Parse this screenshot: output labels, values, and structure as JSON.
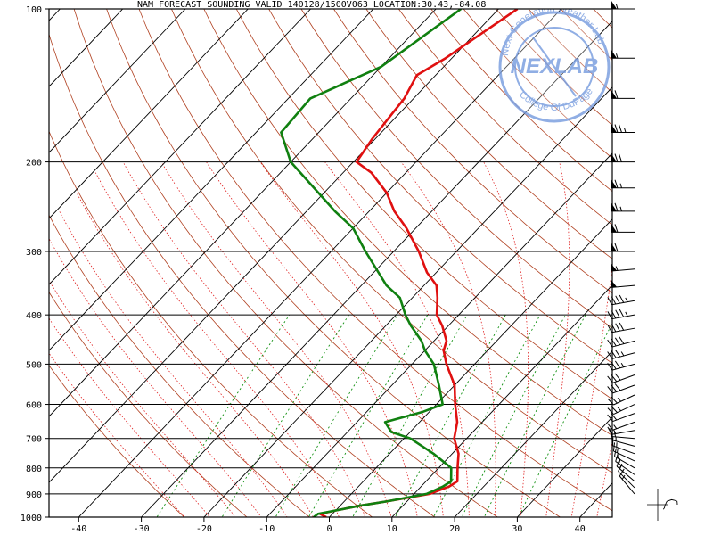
{
  "title": "NAM FORECAST SOUNDING VALID 140128/1500V063   LOCATION:30.43,-84.08",
  "chart_data": {
    "type": "line",
    "subtype": "skew-T log-P sounding",
    "xlim": [
      -45,
      45
    ],
    "ylim_hPa": [
      1000,
      100
    ],
    "x_ticks": [
      -40,
      -30,
      -20,
      -10,
      0,
      10,
      20,
      30,
      40
    ],
    "pressure_ticks": [
      100,
      200,
      300,
      400,
      500,
      600,
      700,
      800,
      900,
      1000
    ],
    "isotherm_interval": 10,
    "series": [
      {
        "kind": "temperature",
        "color": "#e01010",
        "points": [
          [
            1000,
            -0.5
          ],
          [
            985,
            -2.0
          ],
          [
            970,
            0.0
          ],
          [
            950,
            3.0
          ],
          [
            930,
            7.0
          ],
          [
            900,
            12.5
          ],
          [
            870,
            14.5
          ],
          [
            850,
            15.0
          ],
          [
            800,
            13.0
          ],
          [
            750,
            11.0
          ],
          [
            700,
            8.0
          ],
          [
            650,
            6.0
          ],
          [
            600,
            3.0
          ],
          [
            550,
            0.0
          ],
          [
            500,
            -4.5
          ],
          [
            470,
            -7.0
          ],
          [
            450,
            -8.0
          ],
          [
            420,
            -11.0
          ],
          [
            400,
            -13.5
          ],
          [
            370,
            -16.0
          ],
          [
            350,
            -18.0
          ],
          [
            330,
            -21.5
          ],
          [
            300,
            -26.0
          ],
          [
            270,
            -31.5
          ],
          [
            250,
            -36.0
          ],
          [
            230,
            -40.0
          ],
          [
            210,
            -45.5
          ],
          [
            200,
            -49.5
          ],
          [
            180,
            -50.5
          ],
          [
            150,
            -51.5
          ],
          [
            135,
            -53.0
          ],
          [
            125,
            -51.0
          ],
          [
            100,
            -47.0
          ]
        ]
      },
      {
        "kind": "dewpoint",
        "color": "#108010",
        "points": [
          [
            1000,
            -2.5
          ],
          [
            985,
            -2.3
          ],
          [
            970,
            0.0
          ],
          [
            950,
            3.0
          ],
          [
            930,
            7.0
          ],
          [
            900,
            12.0
          ],
          [
            870,
            13.5
          ],
          [
            850,
            14.0
          ],
          [
            800,
            12.0
          ],
          [
            750,
            7.0
          ],
          [
            700,
            1.0
          ],
          [
            680,
            -3.0
          ],
          [
            650,
            -5.5
          ],
          [
            620,
            -1.0
          ],
          [
            600,
            1.0
          ],
          [
            550,
            -2.5
          ],
          [
            500,
            -6.5
          ],
          [
            470,
            -10.0
          ],
          [
            450,
            -12.0
          ],
          [
            420,
            -16.0
          ],
          [
            400,
            -18.5
          ],
          [
            370,
            -22.0
          ],
          [
            350,
            -26.0
          ],
          [
            300,
            -34.5
          ],
          [
            270,
            -40.0
          ],
          [
            250,
            -45.5
          ],
          [
            200,
            -60.0
          ],
          [
            175,
            -66.0
          ],
          [
            150,
            -66.5
          ],
          [
            130,
            -60.0
          ],
          [
            100,
            -56.0
          ]
        ]
      }
    ],
    "wind_barbs": {
      "levels": [
        100,
        125,
        150,
        175,
        200,
        225,
        250,
        275,
        300,
        325,
        350,
        375,
        400,
        425,
        450,
        475,
        500,
        525,
        550,
        575,
        600,
        625,
        650,
        675,
        700,
        725,
        750,
        775,
        800,
        825,
        850,
        875,
        900
      ],
      "direction_deg": [
        270,
        270,
        270,
        270,
        270,
        270,
        270,
        270,
        270,
        265,
        265,
        260,
        260,
        260,
        255,
        255,
        255,
        250,
        250,
        245,
        245,
        250,
        250,
        260,
        275,
        285,
        290,
        295,
        300,
        305,
        310,
        315,
        320
      ],
      "speed_kt": [
        55,
        55,
        60,
        75,
        70,
        65,
        65,
        60,
        60,
        55,
        50,
        45,
        45,
        40,
        40,
        35,
        35,
        30,
        30,
        25,
        25,
        20,
        15,
        15,
        15,
        15,
        15,
        15,
        15,
        15,
        15,
        15,
        15
      ]
    }
  },
  "stamp": {
    "brand": "NEXLAB",
    "ring_top": "Next Generation Weather Lab",
    "ring_bottom": "College Of DuPage"
  },
  "colors": {
    "isotherm": "#000000",
    "isobar": "#000000",
    "dry_adiabat": "#b04020",
    "moist_adiabat": "#e02020",
    "mixing_ratio": "#109010",
    "stamp": "#7da0e0"
  }
}
